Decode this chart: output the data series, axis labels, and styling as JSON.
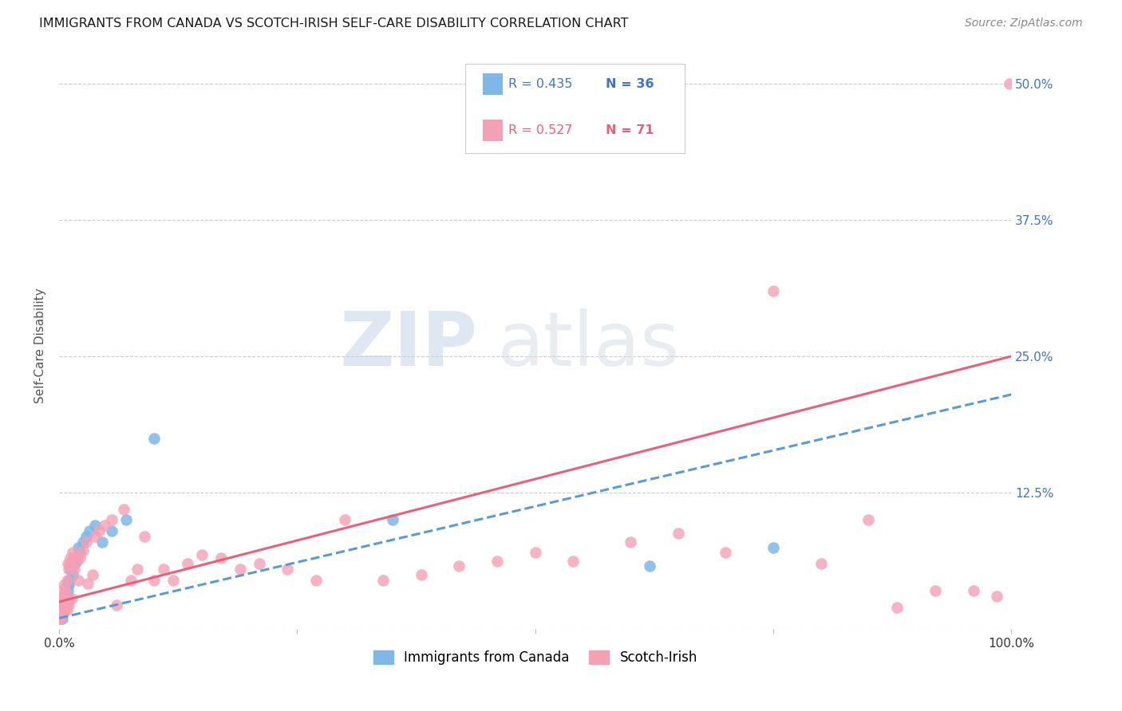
{
  "title": "IMMIGRANTS FROM CANADA VS SCOTCH-IRISH SELF-CARE DISABILITY CORRELATION CHART",
  "source": "Source: ZipAtlas.com",
  "ylabel": "Self-Care Disability",
  "xlim": [
    0,
    1.0
  ],
  "ylim": [
    0,
    0.52
  ],
  "xticks": [
    0.0,
    0.25,
    0.5,
    0.75,
    1.0
  ],
  "xtick_labels": [
    "0.0%",
    "",
    "",
    "",
    "100.0%"
  ],
  "ytick_labels": [
    "",
    "12.5%",
    "25.0%",
    "37.5%",
    "50.0%"
  ],
  "yticks": [
    0.0,
    0.125,
    0.25,
    0.375,
    0.5
  ],
  "blue_color": "#7db8e8",
  "pink_color": "#f4a0b5",
  "blue_line_color": "#5b9bd5",
  "pink_line_color": "#e8607a",
  "blue_label_color": "#4472c4",
  "pink_label_color": "#e8607a",
  "right_tick_color": "#4472c4",
  "legend_R_blue": "0.435",
  "legend_N_blue": "36",
  "legend_R_pink": "0.527",
  "legend_N_pink": "71",
  "watermark_zip": "ZIP",
  "watermark_atlas": "atlas",
  "blue_scatter_x": [
    0.001,
    0.002,
    0.002,
    0.003,
    0.003,
    0.004,
    0.004,
    0.005,
    0.005,
    0.006,
    0.006,
    0.007,
    0.008,
    0.008,
    0.009,
    0.01,
    0.011,
    0.012,
    0.013,
    0.014,
    0.015,
    0.016,
    0.018,
    0.02,
    0.022,
    0.025,
    0.028,
    0.032,
    0.038,
    0.045,
    0.055,
    0.07,
    0.1,
    0.35,
    0.62,
    0.75
  ],
  "blue_scatter_y": [
    0.01,
    0.015,
    0.025,
    0.01,
    0.02,
    0.015,
    0.025,
    0.018,
    0.028,
    0.022,
    0.03,
    0.025,
    0.03,
    0.04,
    0.035,
    0.04,
    0.045,
    0.055,
    0.06,
    0.05,
    0.06,
    0.065,
    0.062,
    0.075,
    0.07,
    0.08,
    0.085,
    0.09,
    0.095,
    0.08,
    0.09,
    0.1,
    0.175,
    0.1,
    0.058,
    0.075
  ],
  "pink_scatter_x": [
    0.001,
    0.001,
    0.002,
    0.002,
    0.003,
    0.003,
    0.004,
    0.004,
    0.005,
    0.005,
    0.006,
    0.006,
    0.007,
    0.007,
    0.008,
    0.008,
    0.009,
    0.009,
    0.01,
    0.01,
    0.011,
    0.012,
    0.013,
    0.014,
    0.015,
    0.016,
    0.017,
    0.018,
    0.02,
    0.022,
    0.025,
    0.028,
    0.03,
    0.035,
    0.038,
    0.042,
    0.048,
    0.055,
    0.06,
    0.068,
    0.075,
    0.082,
    0.09,
    0.1,
    0.11,
    0.12,
    0.135,
    0.15,
    0.17,
    0.19,
    0.21,
    0.24,
    0.27,
    0.3,
    0.34,
    0.38,
    0.42,
    0.46,
    0.5,
    0.54,
    0.6,
    0.65,
    0.7,
    0.75,
    0.8,
    0.85,
    0.88,
    0.92,
    0.96,
    0.985,
    0.998
  ],
  "pink_scatter_y": [
    0.01,
    0.02,
    0.01,
    0.025,
    0.015,
    0.03,
    0.015,
    0.035,
    0.02,
    0.04,
    0.018,
    0.028,
    0.022,
    0.035,
    0.018,
    0.045,
    0.025,
    0.06,
    0.022,
    0.055,
    0.06,
    0.065,
    0.028,
    0.07,
    0.065,
    0.055,
    0.06,
    0.065,
    0.045,
    0.065,
    0.072,
    0.08,
    0.042,
    0.05,
    0.085,
    0.09,
    0.095,
    0.1,
    0.022,
    0.11,
    0.045,
    0.055,
    0.085,
    0.045,
    0.055,
    0.045,
    0.06,
    0.068,
    0.065,
    0.055,
    0.06,
    0.055,
    0.045,
    0.1,
    0.045,
    0.05,
    0.058,
    0.062,
    0.07,
    0.062,
    0.08,
    0.088,
    0.07,
    0.31,
    0.06,
    0.1,
    0.02,
    0.035,
    0.035,
    0.03,
    0.5
  ],
  "blue_trend_x": [
    0.0,
    1.0
  ],
  "blue_trend_y": [
    0.01,
    0.215
  ],
  "pink_trend_x": [
    0.0,
    1.0
  ],
  "pink_trend_y": [
    0.025,
    0.25
  ]
}
